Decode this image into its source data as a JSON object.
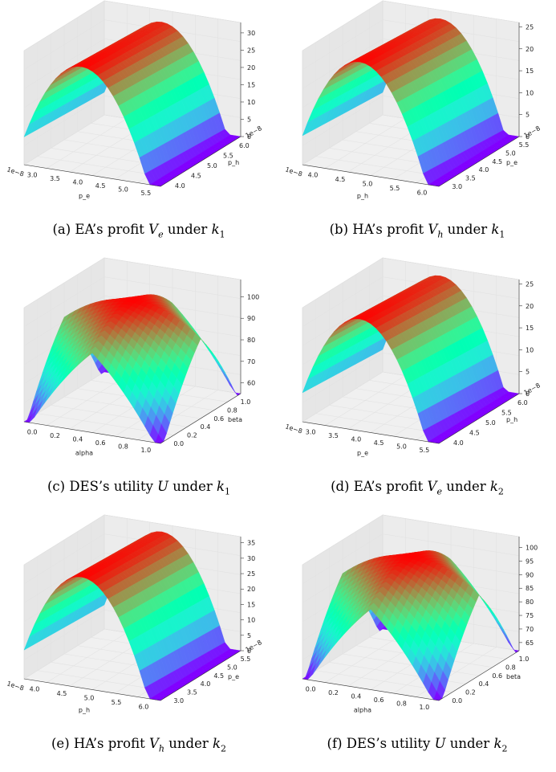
{
  "chart_data": [
    {
      "id": "a",
      "type": "surface3d",
      "label_prefix": "(a)  EA’s profit ",
      "sym": "V",
      "sub": "e",
      "under": "k",
      "under_sub": "1",
      "xlabel": "p_e",
      "ylabel": "p_h",
      "xticks": [
        "3.0",
        "3.5",
        "4.0",
        "4.5",
        "5.0",
        "5.5"
      ],
      "yticks": [
        "4.0",
        "4.5",
        "5.0",
        "5.5",
        "6.0"
      ],
      "x_offset": "1e−8",
      "y_offset": "1e−8",
      "zticks": [
        "0",
        "5",
        "10",
        "15",
        "20",
        "25",
        "30"
      ],
      "zlim": [
        0,
        33
      ],
      "surface": "ridge",
      "peak": 31
    },
    {
      "id": "b",
      "type": "surface3d",
      "label_prefix": "(b)  HA’s profit ",
      "sym": "V",
      "sub": "h",
      "under": "k",
      "under_sub": "1",
      "xlabel": "p_h",
      "ylabel": "p_e",
      "xticks": [
        "4.0",
        "4.5",
        "5.0",
        "5.5",
        "6.0"
      ],
      "yticks": [
        "3.0",
        "3.5",
        "4.0",
        "4.5",
        "5.0",
        "5.5"
      ],
      "x_offset": "1e−8",
      "y_offset": "1e−8",
      "zticks": [
        "0",
        "5",
        "10",
        "15",
        "20",
        "25"
      ],
      "zlim": [
        0,
        26
      ],
      "surface": "ridge",
      "peak": 25.5
    },
    {
      "id": "c",
      "type": "surface3d",
      "label_prefix": "(c)  DES’s utility ",
      "sym": "U",
      "sub": "",
      "under": "k",
      "under_sub": "1",
      "xlabel": "alpha",
      "ylabel": "beta",
      "xticks": [
        "0.0",
        "0.2",
        "0.4",
        "0.6",
        "0.8",
        "1.0"
      ],
      "yticks": [
        "0.0",
        "0.2",
        "0.4",
        "0.6",
        "0.8",
        "1.0"
      ],
      "x_offset": "",
      "y_offset": "",
      "zticks": [
        "60",
        "70",
        "80",
        "90",
        "100"
      ],
      "zlim": [
        55,
        108
      ],
      "surface": "dome",
      "peak": 105
    },
    {
      "id": "d",
      "type": "surface3d",
      "label_prefix": "(d)  EA’s profit ",
      "sym": "V",
      "sub": "e",
      "under": "k",
      "under_sub": "2",
      "xlabel": "p_e",
      "ylabel": "p_h",
      "xticks": [
        "3.0",
        "3.5",
        "4.0",
        "4.5",
        "5.0",
        "5.5"
      ],
      "yticks": [
        "4.0",
        "4.5",
        "5.0",
        "5.5",
        "6.0"
      ],
      "x_offset": "1e−8",
      "y_offset": "1e−8",
      "zticks": [
        "0",
        "5",
        "10",
        "15",
        "20",
        "25"
      ],
      "zlim": [
        0,
        26
      ],
      "surface": "ridge",
      "peak": 25.5
    },
    {
      "id": "e",
      "type": "surface3d",
      "label_prefix": "(e)  HA’s profit ",
      "sym": "V",
      "sub": "h",
      "under": "k",
      "under_sub": "2",
      "xlabel": "p_h",
      "ylabel": "p_e",
      "xticks": [
        "4.0",
        "4.5",
        "5.0",
        "5.5",
        "6.0"
      ],
      "yticks": [
        "3.0",
        "3.5",
        "4.0",
        "4.5",
        "5.0",
        "5.5"
      ],
      "x_offset": "1e−8",
      "y_offset": "1e−8",
      "zticks": [
        "0",
        "5",
        "10",
        "15",
        "20",
        "25",
        "30",
        "35"
      ],
      "zlim": [
        0,
        37
      ],
      "surface": "ridge",
      "peak": 36
    },
    {
      "id": "f",
      "type": "surface3d",
      "label_prefix": "(f)  DES’s utility ",
      "sym": "U",
      "sub": "",
      "under": "k",
      "under_sub": "2",
      "xlabel": "alpha",
      "ylabel": "beta",
      "xticks": [
        "0.0",
        "0.2",
        "0.4",
        "0.6",
        "0.8",
        "1.0"
      ],
      "yticks": [
        "0.0",
        "0.2",
        "0.4",
        "0.6",
        "0.8",
        "1.0"
      ],
      "x_offset": "",
      "y_offset": "",
      "zticks": [
        "65",
        "70",
        "75",
        "80",
        "85",
        "90",
        "95",
        "100"
      ],
      "zlim": [
        62,
        104
      ],
      "surface": "dome",
      "peak": 102
    }
  ],
  "captions": {
    "a": {
      "prefix": "(a)  EA’s profit ",
      "sym": "V",
      "sub": "e",
      "mid": " under ",
      "k": "k",
      "ksub": "1"
    },
    "b": {
      "prefix": "(b)  HA’s profit ",
      "sym": "V",
      "sub": "h",
      "mid": " under ",
      "k": "k",
      "ksub": "1"
    },
    "c": {
      "prefix": "(c)  DES’s utility ",
      "sym": "U",
      "sub": "",
      "mid": " under ",
      "k": "k",
      "ksub": "1"
    },
    "d": {
      "prefix": "(d)  EA’s profit ",
      "sym": "V",
      "sub": "e",
      "mid": " under ",
      "k": "k",
      "ksub": "2"
    },
    "e": {
      "prefix": "(e)  HA’s profit ",
      "sym": "V",
      "sub": "h",
      "mid": " under ",
      "k": "k",
      "ksub": "2"
    },
    "f": {
      "prefix": "(f)  DES’s utility ",
      "sym": "U",
      "sub": "",
      "mid": " under ",
      "k": "k",
      "ksub": "2"
    }
  },
  "colors": {
    "colormap": "rainbow",
    "pane": "#f2f2f2",
    "grid": "#e2e2e2"
  }
}
